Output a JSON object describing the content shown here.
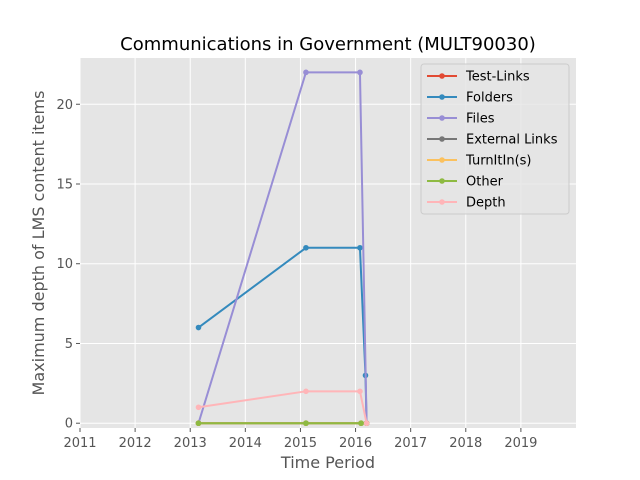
{
  "chart_data": {
    "type": "line",
    "title": "Communications in Government (MULT90030)",
    "xlabel": "Time Period",
    "ylabel": "Maximum depth of LMS content items",
    "xlim": [
      2011,
      2020
    ],
    "ylim": [
      -0.3,
      22.9
    ],
    "xticks": [
      2011,
      2012,
      2013,
      2014,
      2015,
      2016,
      2017,
      2018,
      2019
    ],
    "yticks": [
      0,
      5,
      10,
      15,
      20
    ],
    "grid": true,
    "legend_position": "top-right",
    "series": [
      {
        "name": "Test-Links",
        "color": "#E24A33",
        "x": [
          2013.15,
          2015.1,
          2016.1,
          2016.2
        ],
        "y": [
          0,
          0,
          0,
          0
        ]
      },
      {
        "name": "Folders",
        "color": "#348ABD",
        "x": [
          2013.15,
          2015.1,
          2016.08,
          2016.18,
          2016.2
        ],
        "y": [
          6,
          11,
          11,
          3,
          0
        ]
      },
      {
        "name": "Files",
        "color": "#988ED5",
        "x": [
          2013.15,
          2015.1,
          2016.08,
          2016.2
        ],
        "y": [
          0,
          22,
          22,
          0
        ]
      },
      {
        "name": "External Links",
        "color": "#777777",
        "x": [
          2013.15,
          2015.1,
          2016.1,
          2016.2
        ],
        "y": [
          0,
          0,
          0,
          0
        ]
      },
      {
        "name": "TurnItIn(s)",
        "color": "#FBC15E",
        "x": [
          2013.15,
          2015.1,
          2016.1,
          2016.2
        ],
        "y": [
          0,
          0,
          0,
          0
        ]
      },
      {
        "name": "Other",
        "color": "#8EBA42",
        "x": [
          2013.15,
          2015.1,
          2016.1,
          2016.2
        ],
        "y": [
          0,
          0,
          0,
          0
        ]
      },
      {
        "name": "Depth",
        "color": "#FFB5B8",
        "x": [
          2013.15,
          2015.1,
          2016.08,
          2016.2
        ],
        "y": [
          1,
          2,
          2,
          0
        ]
      }
    ]
  }
}
